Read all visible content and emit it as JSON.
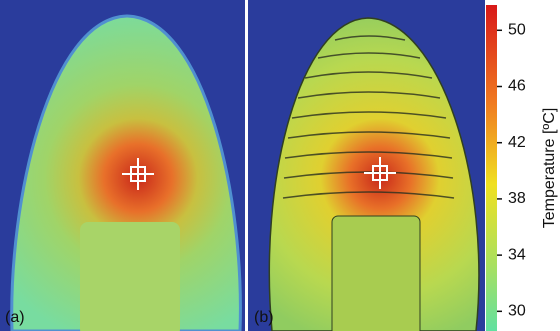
{
  "panels": [
    {
      "label": "(a)"
    },
    {
      "label": "(b)"
    }
  ],
  "colorbar": {
    "label": "Temperature [ºC]",
    "lim": [
      28.6,
      51.8
    ],
    "ticks": [
      30,
      34,
      38,
      42,
      46,
      50
    ]
  }
}
